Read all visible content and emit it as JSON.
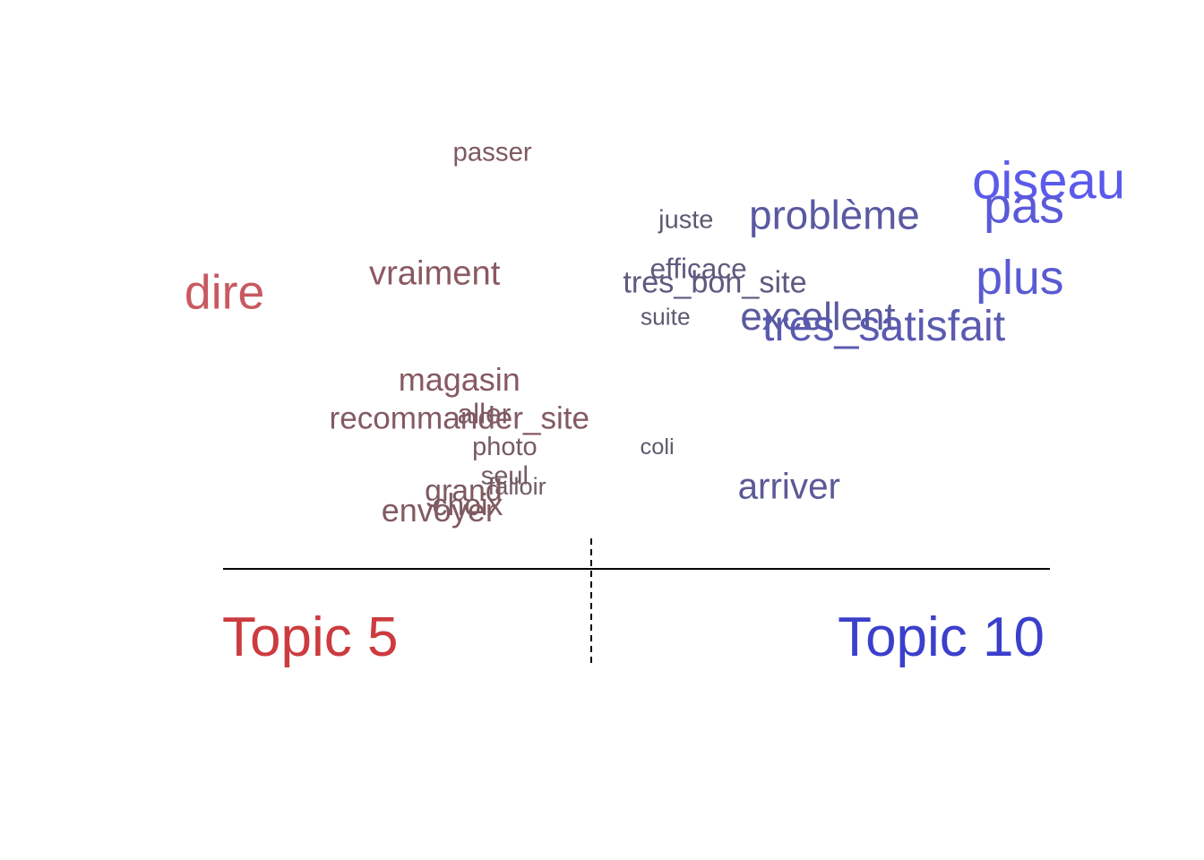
{
  "chart_data": {
    "type": "scatter",
    "title": "",
    "xlabel": "",
    "ylabel": "",
    "xlim": [
      -1,
      1
    ],
    "ylim": [
      0,
      1
    ],
    "grid": false,
    "legend": "none",
    "left_label": {
      "text": "Topic 5",
      "color": "#cc3b3f"
    },
    "right_label": {
      "text": "Topic 10",
      "color": "#3b3fcc"
    },
    "words": [
      {
        "label": "passer",
        "x": -0.24,
        "y": 0.88,
        "size": 0.35,
        "color": "#7e5a60"
      },
      {
        "label": "vraiment",
        "x": -0.38,
        "y": 0.63,
        "size": 0.55,
        "color": "#8a5a60"
      },
      {
        "label": "dire",
        "x": -0.89,
        "y": 0.59,
        "size": 0.9,
        "color": "#c75a60"
      },
      {
        "label": "magasin",
        "x": -0.32,
        "y": 0.41,
        "size": 0.5,
        "color": "#865a62"
      },
      {
        "label": "recommander_site",
        "x": -0.32,
        "y": 0.33,
        "size": 0.48,
        "color": "#845a62"
      },
      {
        "label": "aller",
        "x": -0.26,
        "y": 0.34,
        "size": 0.4,
        "color": "#7e5a64"
      },
      {
        "label": "photo",
        "x": -0.21,
        "y": 0.27,
        "size": 0.34,
        "color": "#765a64"
      },
      {
        "label": "seul",
        "x": -0.21,
        "y": 0.21,
        "size": 0.34,
        "color": "#765a64"
      },
      {
        "label": "falloir",
        "x": -0.18,
        "y": 0.19,
        "size": 0.3,
        "color": "#725a66"
      },
      {
        "label": "grand",
        "x": -0.31,
        "y": 0.18,
        "size": 0.45,
        "color": "#7c5a60"
      },
      {
        "label": "choix",
        "x": -0.3,
        "y": 0.15,
        "size": 0.45,
        "color": "#7c5a60"
      },
      {
        "label": "envoyer",
        "x": -0.37,
        "y": 0.14,
        "size": 0.5,
        "color": "#825a60"
      },
      {
        "label": "juste",
        "x": 0.23,
        "y": 0.74,
        "size": 0.34,
        "color": "#5e5a72"
      },
      {
        "label": "problème",
        "x": 0.59,
        "y": 0.75,
        "size": 0.72,
        "color": "#5a5aa2"
      },
      {
        "label": "oiseau",
        "x": 1.11,
        "y": 0.82,
        "size": 1.0,
        "color": "#5a5aec"
      },
      {
        "label": "pas",
        "x": 1.05,
        "y": 0.77,
        "size": 0.95,
        "color": "#5a5ad8"
      },
      {
        "label": "plus",
        "x": 1.04,
        "y": 0.62,
        "size": 0.9,
        "color": "#5a5ad2"
      },
      {
        "label": "efficace",
        "x": 0.26,
        "y": 0.64,
        "size": 0.4,
        "color": "#5e5a7c"
      },
      {
        "label": "tres_bon_site",
        "x": 0.3,
        "y": 0.61,
        "size": 0.46,
        "color": "#5e5a80"
      },
      {
        "label": "suite",
        "x": 0.18,
        "y": 0.54,
        "size": 0.28,
        "color": "#5e5a70"
      },
      {
        "label": "excellent",
        "x": 0.55,
        "y": 0.54,
        "size": 0.68,
        "color": "#5a5a9e"
      },
      {
        "label": "tres_satisfait",
        "x": 0.71,
        "y": 0.52,
        "size": 0.78,
        "color": "#5a5ab0"
      },
      {
        "label": "coli",
        "x": 0.16,
        "y": 0.27,
        "size": 0.26,
        "color": "#5e5a6c"
      },
      {
        "label": "arriver",
        "x": 0.48,
        "y": 0.19,
        "size": 0.6,
        "color": "#5a5a96"
      }
    ]
  }
}
